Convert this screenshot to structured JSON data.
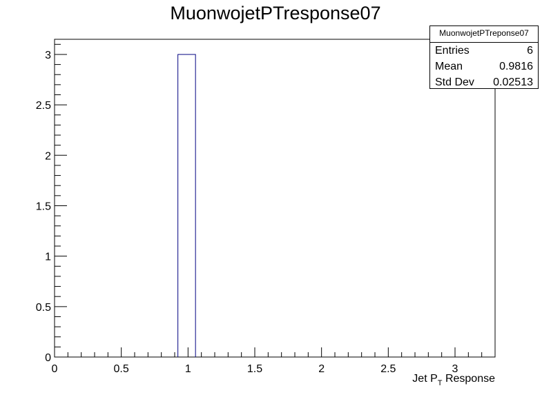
{
  "chart_data": {
    "type": "bar",
    "title": "MuonwojetPTresponse07",
    "xlabel_main": "Jet P",
    "xlabel_sub": "T",
    "xlabel_rest": " Response",
    "ylabel": "",
    "xlim": [
      0,
      3.3
    ],
    "ylim": [
      0,
      3.15
    ],
    "xticks": [
      "0",
      "0.5",
      "1",
      "1.5",
      "2",
      "2.5",
      "3"
    ],
    "yticks": [
      "0",
      "0.5",
      "1",
      "1.5",
      "2",
      "2.5",
      "3"
    ],
    "bins": [
      {
        "x_low": 0.924,
        "x_high": 1.056,
        "value": 3
      }
    ],
    "grid": false,
    "line_color": "#000080"
  },
  "stats": {
    "name": "MuonwojetPTreponse07",
    "entries_label": "Entries",
    "entries_value": "6",
    "mean_label": "Mean",
    "mean_value": "0.9816",
    "stddev_label": "Std Dev",
    "stddev_value": "0.02513"
  }
}
